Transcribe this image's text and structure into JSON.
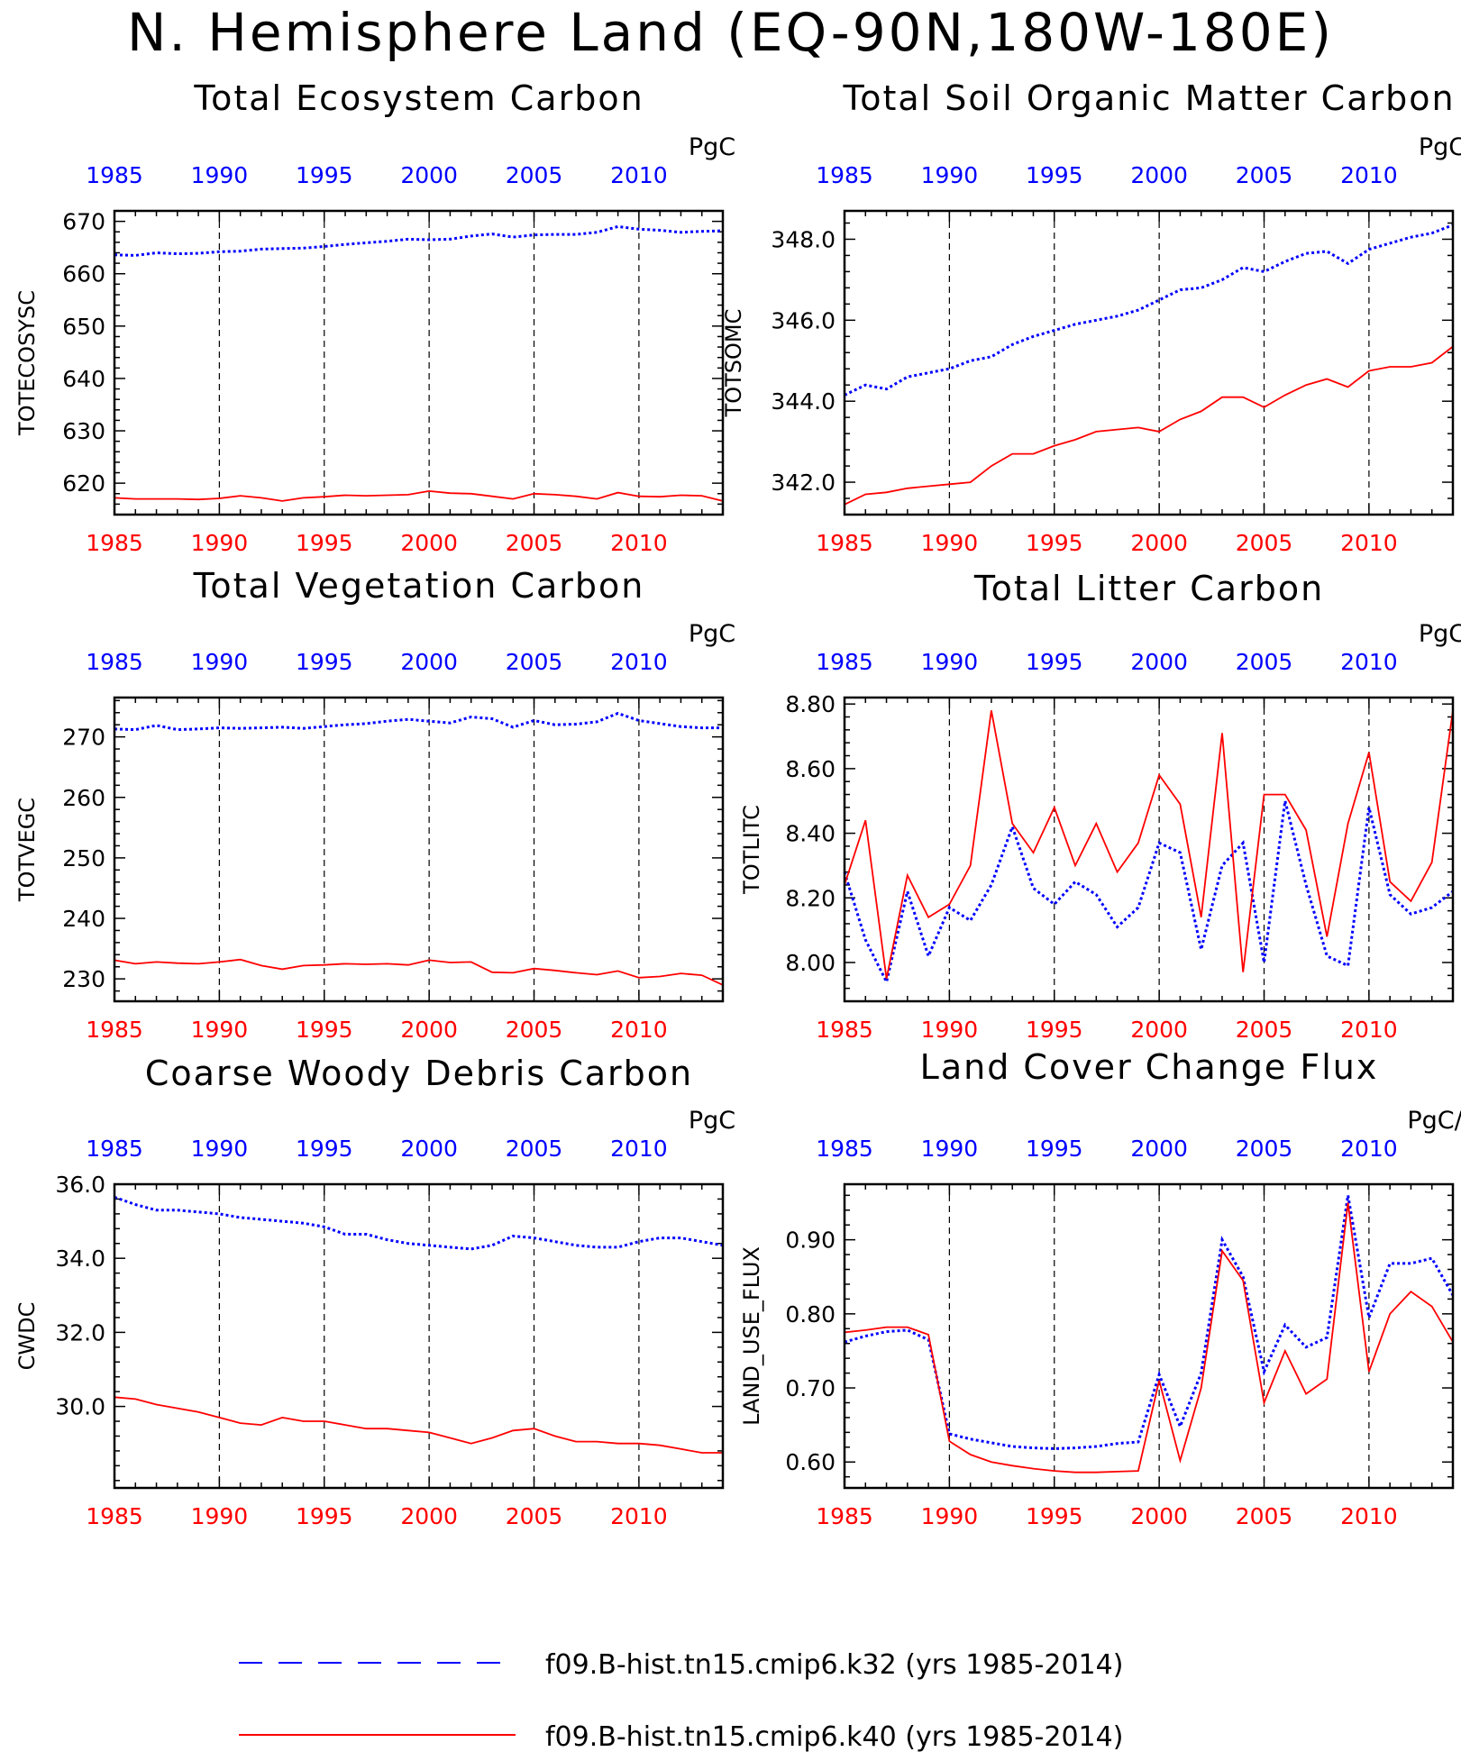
{
  "title": "N. Hemisphere Land (EQ-90N,180W-180E)",
  "colors": {
    "k32": "#0000ff",
    "k40": "#ff0000",
    "axis": "#000000",
    "grid": "#000000"
  },
  "legend": {
    "k32": "f09.B-hist.tn15.cmip6.k32 (yrs 1985-2014)",
    "k40": "f09.B-hist.tn15.cmip6.k40 (yrs 1985-2014)"
  },
  "chart_data": [
    {
      "type": "line",
      "title": "Total Ecosystem Carbon",
      "ylabel": "TOTECOSYSC",
      "units": "PgC",
      "xlim": [
        1985,
        2014
      ],
      "ylim": [
        614,
        672
      ],
      "yticks": [
        620,
        630,
        640,
        650,
        660,
        670
      ],
      "ytick_labels": [
        "620",
        "630",
        "640",
        "650",
        "660",
        "670"
      ],
      "xticks": [
        1985,
        1990,
        1995,
        2000,
        2005,
        2010
      ],
      "vgrid": [
        1990,
        1995,
        2000,
        2005,
        2010
      ],
      "series": [
        {
          "key": "k32",
          "style": "dotted",
          "values": [
            663.6,
            663.5,
            664.0,
            663.8,
            663.9,
            664.2,
            664.3,
            664.7,
            664.8,
            664.9,
            665.2,
            665.6,
            665.9,
            666.2,
            666.6,
            666.5,
            666.6,
            667.2,
            667.6,
            667.0,
            667.4,
            667.5,
            667.5,
            667.9,
            669.0,
            668.5,
            668.3,
            667.9,
            668.1,
            668.2
          ]
        },
        {
          "key": "k40",
          "style": "solid",
          "values": [
            617.2,
            617.0,
            617.0,
            617.0,
            616.9,
            617.1,
            617.6,
            617.2,
            616.6,
            617.2,
            617.4,
            617.7,
            617.6,
            617.7,
            617.8,
            618.5,
            618.1,
            618.0,
            617.5,
            617.0,
            618.0,
            617.8,
            617.5,
            617.0,
            618.2,
            617.5,
            617.4,
            617.7,
            617.6,
            616.6
          ]
        }
      ]
    },
    {
      "type": "line",
      "title": "Total Soil Organic Matter Carbon",
      "ylabel": "TOTSOMC",
      "units": "PgC",
      "xlim": [
        1985,
        2014
      ],
      "ylim": [
        341.2,
        348.7
      ],
      "yticks": [
        342,
        344,
        346,
        348
      ],
      "ytick_labels": [
        "342.0",
        "344.0",
        "346.0",
        "348.0"
      ],
      "xticks": [
        1985,
        1990,
        1995,
        2000,
        2005,
        2010
      ],
      "vgrid": [
        1990,
        1995,
        2000,
        2005,
        2010
      ],
      "series": [
        {
          "key": "k32",
          "style": "dotted",
          "values": [
            344.15,
            344.4,
            344.3,
            344.6,
            344.7,
            344.8,
            345.0,
            345.1,
            345.4,
            345.6,
            345.75,
            345.9,
            346.0,
            346.1,
            346.25,
            346.5,
            346.75,
            346.8,
            347.0,
            347.3,
            347.2,
            347.45,
            347.65,
            347.7,
            347.4,
            347.75,
            347.9,
            348.05,
            348.15,
            348.35
          ]
        },
        {
          "key": "k40",
          "style": "solid",
          "values": [
            341.45,
            341.7,
            341.75,
            341.85,
            341.9,
            341.95,
            342.0,
            342.4,
            342.7,
            342.7,
            342.9,
            343.05,
            343.25,
            343.3,
            343.35,
            343.25,
            343.55,
            343.75,
            344.1,
            344.1,
            343.85,
            344.15,
            344.4,
            344.55,
            344.35,
            344.75,
            344.85,
            344.85,
            344.95,
            345.35
          ]
        }
      ]
    },
    {
      "type": "line",
      "title": "Total Vegetation Carbon",
      "ylabel": "TOTVEGC",
      "units": "PgC",
      "xlim": [
        1985,
        2014
      ],
      "ylim": [
        226.3,
        276.5
      ],
      "yticks": [
        230,
        240,
        250,
        260,
        270
      ],
      "ytick_labels": [
        "230",
        "240",
        "250",
        "260",
        "270"
      ],
      "xticks": [
        1985,
        1990,
        1995,
        2000,
        2005,
        2010
      ],
      "vgrid": [
        1990,
        1995,
        2000,
        2005,
        2010
      ],
      "series": [
        {
          "key": "k32",
          "style": "dotted",
          "values": [
            271.3,
            271.2,
            271.9,
            271.2,
            271.3,
            271.5,
            271.4,
            271.5,
            271.6,
            271.4,
            271.7,
            272.0,
            272.2,
            272.6,
            272.9,
            272.6,
            272.3,
            273.3,
            273.0,
            271.6,
            272.7,
            272.0,
            272.1,
            272.5,
            273.9,
            272.7,
            272.2,
            271.7,
            271.5,
            271.5
          ]
        },
        {
          "key": "k40",
          "style": "solid",
          "values": [
            233.1,
            232.5,
            232.8,
            232.6,
            232.5,
            232.8,
            233.2,
            232.2,
            231.6,
            232.2,
            232.3,
            232.5,
            232.4,
            232.5,
            232.3,
            233.1,
            232.7,
            232.8,
            231.1,
            231.0,
            231.7,
            231.4,
            231.0,
            230.7,
            231.3,
            230.2,
            230.4,
            230.9,
            230.6,
            229.0
          ]
        }
      ]
    },
    {
      "type": "line",
      "title": "Total Litter Carbon",
      "ylabel": "TOTLITC",
      "units": "PgC",
      "xlim": [
        1985,
        2014
      ],
      "ylim": [
        7.88,
        8.82
      ],
      "yticks": [
        8.0,
        8.2,
        8.4,
        8.6,
        8.8
      ],
      "ytick_labels": [
        "8.00",
        "8.20",
        "8.40",
        "8.60",
        "8.80"
      ],
      "xticks": [
        1985,
        1990,
        1995,
        2000,
        2005,
        2010
      ],
      "vgrid": [
        1990,
        1995,
        2000,
        2005,
        2010
      ],
      "series": [
        {
          "key": "k32",
          "style": "dotted",
          "values": [
            8.28,
            8.07,
            7.94,
            8.22,
            8.02,
            8.17,
            8.13,
            8.24,
            8.42,
            8.23,
            8.18,
            8.25,
            8.21,
            8.11,
            8.17,
            8.37,
            8.34,
            8.04,
            8.3,
            8.37,
            8.0,
            8.5,
            8.24,
            8.02,
            7.99,
            8.48,
            8.21,
            8.15,
            8.17,
            8.22
          ]
        },
        {
          "key": "k40",
          "style": "solid",
          "values": [
            8.24,
            8.44,
            7.95,
            8.27,
            8.14,
            8.18,
            8.3,
            8.78,
            8.43,
            8.34,
            8.48,
            8.3,
            8.43,
            8.28,
            8.37,
            8.58,
            8.49,
            8.14,
            8.71,
            7.97,
            8.52,
            8.52,
            8.41,
            8.08,
            8.43,
            8.65,
            8.25,
            8.19,
            8.31,
            8.78
          ]
        }
      ]
    },
    {
      "type": "line",
      "title": "Coarse Woody Debris Carbon",
      "ylabel": "CWDC",
      "units": "PgC",
      "xlim": [
        1985,
        2014
      ],
      "ylim": [
        27.8,
        36.0
      ],
      "yticks": [
        30,
        32,
        34,
        36
      ],
      "ytick_labels": [
        "30.0",
        "32.0",
        "34.0",
        "36.0"
      ],
      "xticks": [
        1985,
        1990,
        1995,
        2000,
        2005,
        2010
      ],
      "vgrid": [
        1990,
        1995,
        2000,
        2005,
        2010
      ],
      "series": [
        {
          "key": "k32",
          "style": "dotted",
          "values": [
            35.65,
            35.45,
            35.3,
            35.3,
            35.25,
            35.2,
            35.1,
            35.05,
            35.0,
            34.95,
            34.85,
            34.65,
            34.65,
            34.5,
            34.4,
            34.35,
            34.3,
            34.25,
            34.35,
            34.6,
            34.55,
            34.45,
            34.35,
            34.3,
            34.3,
            34.45,
            34.55,
            34.55,
            34.45,
            34.35
          ]
        },
        {
          "key": "k40",
          "style": "solid",
          "values": [
            30.25,
            30.2,
            30.05,
            29.95,
            29.85,
            29.7,
            29.55,
            29.5,
            29.7,
            29.6,
            29.6,
            29.5,
            29.4,
            29.4,
            29.35,
            29.3,
            29.15,
            29.0,
            29.15,
            29.35,
            29.4,
            29.2,
            29.05,
            29.05,
            29.0,
            29.0,
            28.95,
            28.85,
            28.75,
            28.75
          ]
        }
      ]
    },
    {
      "type": "line",
      "title": "Land Cover Change Flux",
      "ylabel": "LAND_USE_FLUX",
      "units": "PgC/y",
      "xlim": [
        1985,
        2014
      ],
      "ylim": [
        0.565,
        0.975
      ],
      "yticks": [
        0.6,
        0.7,
        0.8,
        0.9
      ],
      "ytick_labels": [
        "0.60",
        "0.70",
        "0.80",
        "0.90"
      ],
      "xticks": [
        1985,
        1990,
        1995,
        2000,
        2005,
        2010
      ],
      "vgrid": [
        1990,
        1995,
        2000,
        2005,
        2010
      ],
      "series": [
        {
          "key": "k32",
          "style": "dotted",
          "values": [
            0.762,
            0.77,
            0.776,
            0.778,
            0.765,
            0.638,
            0.631,
            0.626,
            0.621,
            0.619,
            0.618,
            0.619,
            0.621,
            0.625,
            0.627,
            0.718,
            0.648,
            0.72,
            0.9,
            0.85,
            0.722,
            0.785,
            0.755,
            0.768,
            0.96,
            0.795,
            0.868,
            0.868,
            0.875,
            0.825
          ]
        },
        {
          "key": "k40",
          "style": "solid",
          "values": [
            0.775,
            0.778,
            0.782,
            0.782,
            0.772,
            0.628,
            0.61,
            0.6,
            0.595,
            0.591,
            0.588,
            0.586,
            0.586,
            0.587,
            0.588,
            0.71,
            0.602,
            0.7,
            0.885,
            0.845,
            0.68,
            0.75,
            0.692,
            0.712,
            0.95,
            0.722,
            0.8,
            0.83,
            0.81,
            0.762
          ]
        }
      ]
    }
  ]
}
